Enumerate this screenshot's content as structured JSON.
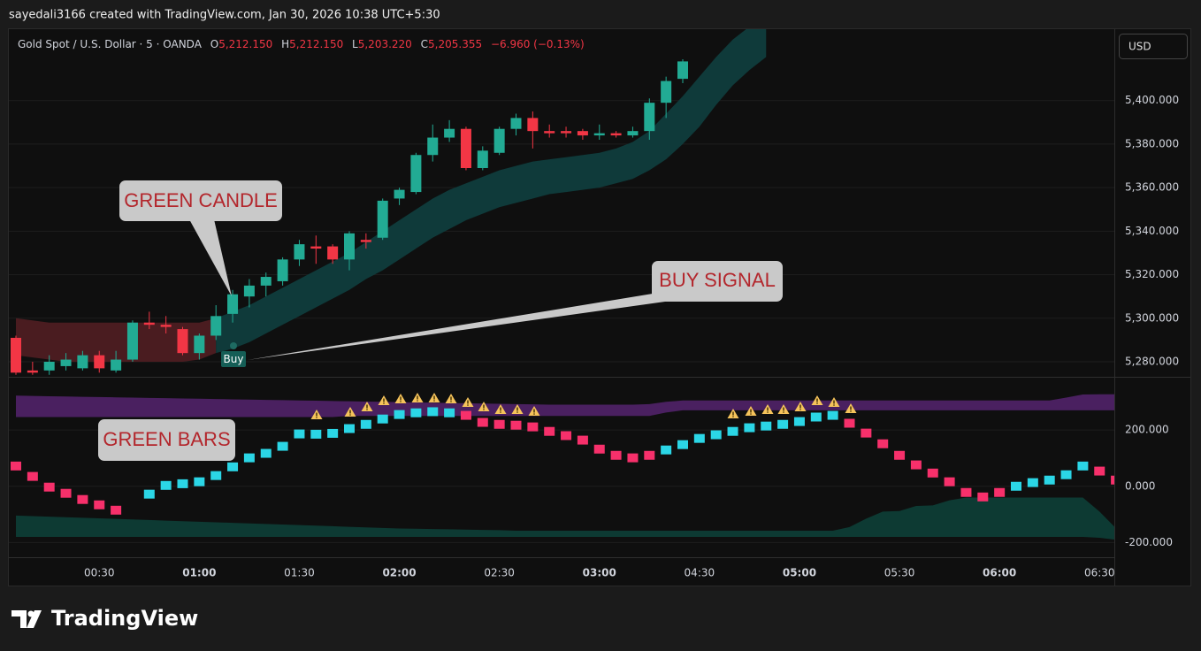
{
  "header": {
    "attribution": "sayedali3166 created with TradingView.com, Jan 30, 2026 10:38 UTC+5:30",
    "symbol": "Gold Spot / U.S. Dollar · 5 · OANDA",
    "ohlc": [
      {
        "key": "O",
        "value": "5,212.150"
      },
      {
        "key": "H",
        "value": "5,212.150"
      },
      {
        "key": "L",
        "value": "5,203.220"
      },
      {
        "key": "C",
        "value": "5,205.355"
      }
    ],
    "change": "−6.960 (−0.13%)",
    "currency": "USD",
    "brand": "TradingView"
  },
  "chart_data": [
    {
      "type": "candlestick",
      "annotations": [
        "GREEN CANDLE",
        "BUY SIGNAL"
      ],
      "signal": {
        "label": "Buy"
      },
      "up_color": "#22ab94",
      "down_color": "#f23645",
      "grid": true,
      "ylim": [
        5273.5,
        5432.8
      ],
      "yticks": [
        {
          "value": 5280,
          "label": "5,280.000"
        },
        {
          "value": 5300,
          "label": "5,300.000"
        },
        {
          "value": 5320,
          "label": "5,320.000"
        },
        {
          "value": 5340,
          "label": "5,340.000"
        },
        {
          "value": 5360,
          "label": "5,360.000"
        },
        {
          "value": 5380,
          "label": "5,380.000"
        },
        {
          "value": 5400,
          "label": "5,400.000"
        }
      ],
      "open": [
        5291,
        5276,
        5276,
        5278,
        5277,
        5283,
        5276,
        5281,
        5298,
        5297,
        5295,
        5284,
        5292,
        5302,
        5310,
        5315,
        5317,
        5327,
        5333,
        5333,
        5327,
        5336,
        5337,
        5355,
        5358,
        5375,
        5383,
        5387,
        5369,
        5376,
        5387,
        5392,
        5386,
        5386,
        5386,
        5384,
        5385,
        5384,
        5386,
        5399,
        5410
      ],
      "high": [
        5292,
        5280,
        5283,
        5284,
        5285,
        5285,
        5285,
        5299,
        5303,
        5301,
        5296,
        5293,
        5306,
        5313,
        5318,
        5321,
        5328,
        5336,
        5338,
        5334,
        5340,
        5339,
        5355,
        5360,
        5376,
        5389,
        5391,
        5388,
        5379,
        5388,
        5394,
        5395,
        5389,
        5388,
        5387,
        5389,
        5386,
        5388,
        5401,
        5411,
        5419
      ],
      "low": [
        5274,
        5274,
        5274,
        5276,
        5276,
        5275,
        5275,
        5280,
        5295,
        5293,
        5283,
        5281,
        5290,
        5298,
        5305,
        5310,
        5315,
        5324,
        5325,
        5325,
        5322,
        5332,
        5336,
        5352,
        5357,
        5372,
        5381,
        5368,
        5368,
        5375,
        5384,
        5378,
        5383,
        5383,
        5382,
        5382,
        5383,
        5383,
        5382,
        5392,
        5408
      ],
      "close": [
        5275,
        5275,
        5280,
        5281,
        5283,
        5277,
        5281,
        5298,
        5297,
        5296,
        5284,
        5292,
        5301,
        5311,
        5315,
        5319,
        5327,
        5334,
        5332,
        5327,
        5339,
        5335,
        5354,
        5359,
        5375,
        5383,
        5387,
        5369,
        5377,
        5387,
        5392,
        5386,
        5385,
        5385,
        5384,
        5385,
        5384,
        5386,
        5399,
        5409,
        5418
      ],
      "bands": [
        {
          "color": "#4a1c20",
          "upper": [
            5300,
            5299,
            5298,
            5298,
            5298,
            5298,
            5298,
            5298,
            5298,
            5298,
            5298,
            5298,
            5300,
            null,
            null,
            null,
            null,
            null,
            null,
            null,
            null,
            null,
            null,
            null,
            null,
            null,
            null,
            null,
            null,
            null,
            null,
            null,
            null,
            null,
            null,
            null,
            null,
            null,
            null,
            null,
            null,
            null,
            null,
            null,
            null,
            null
          ],
          "lower": [
            5283,
            5282,
            5281,
            5280,
            5280,
            5280,
            5280,
            5280,
            5280,
            5280,
            5280,
            5281,
            5284,
            null,
            null,
            null,
            null,
            null,
            null,
            null,
            null,
            null,
            null,
            null,
            null,
            null,
            null,
            null,
            null,
            null,
            null,
            null,
            null,
            null,
            null,
            null,
            null,
            null,
            null,
            null,
            null,
            null,
            null,
            null,
            null,
            null
          ]
        },
        {
          "color": "#0f3a3a",
          "upper": [
            null,
            null,
            null,
            null,
            null,
            null,
            null,
            null,
            null,
            null,
            null,
            null,
            5300,
            5303,
            5306,
            5310,
            5314,
            5318,
            5322,
            5326,
            5330,
            5335,
            5340,
            5345,
            5350,
            5355,
            5359,
            5362,
            5365,
            5368,
            5370,
            5372,
            5373,
            5374,
            5375,
            5376,
            5378,
            5381,
            5386,
            5394,
            5402,
            5411,
            5420,
            5428,
            5434,
            5440
          ],
          "lower": [
            null,
            null,
            null,
            null,
            null,
            null,
            null,
            null,
            null,
            null,
            null,
            null,
            5284,
            5286,
            5289,
            5293,
            5297,
            5301,
            5305,
            5309,
            5313,
            5318,
            5322,
            5327,
            5332,
            5337,
            5341,
            5345,
            5348,
            5351,
            5353,
            5355,
            5357,
            5358,
            5359,
            5360,
            5362,
            5364,
            5368,
            5373,
            5380,
            5388,
            5398,
            5407,
            5414,
            5420
          ]
        }
      ]
    },
    {
      "type": "indicator",
      "annotations": [
        "GREEN BARS"
      ],
      "grid": true,
      "ylim": [
        -352.8,
        382.7
      ],
      "yticks": [
        {
          "value": -200,
          "label": "-200.000"
        },
        {
          "value": 0,
          "label": "0.000"
        },
        {
          "value": 200,
          "label": "200.000"
        }
      ],
      "categories": [
        null,
        null,
        null,
        null,
        null,
        "00:30",
        null,
        null,
        null,
        null,
        null,
        "01:00",
        null,
        null,
        null,
        null,
        null,
        "01:30",
        null,
        null,
        null,
        null,
        null,
        "02:00",
        null,
        null,
        null,
        null,
        null,
        "02:30",
        null,
        null,
        null,
        null,
        null,
        "03:00",
        null,
        null,
        null,
        null,
        null,
        "04:30",
        null,
        null,
        null,
        null,
        null,
        "05:00",
        null,
        null,
        null,
        null,
        null,
        "05:30",
        null,
        null,
        null,
        null,
        null,
        "06:00",
        null,
        null,
        null,
        null,
        null,
        "06:30",
        null
      ],
      "series": [
        {
          "color": "#2bd6e6",
          "values": [
            null,
            null,
            null,
            null,
            null,
            null,
            null,
            null,
            -28,
            3,
            9,
            16,
            38,
            69,
            101,
            117,
            142,
            186,
            185,
            188,
            205,
            220,
            239,
            255,
            261,
            265,
            261,
            null,
            null,
            null,
            null,
            null,
            null,
            null,
            null,
            null,
            null,
            null,
            null,
            129,
            148,
            170,
            183,
            195,
            208,
            214,
            220,
            230,
            246,
            252,
            null,
            null,
            null,
            null,
            null,
            null,
            null,
            null,
            null,
            null,
            0,
            13,
            22,
            41,
            72,
            null,
            null
          ]
        },
        {
          "color": "#f7306b",
          "values": [
            72,
            35,
            -3,
            -25,
            -47,
            -66,
            -85,
            null,
            null,
            null,
            null,
            null,
            null,
            null,
            null,
            null,
            null,
            null,
            null,
            null,
            null,
            null,
            null,
            null,
            null,
            null,
            null,
            252,
            227,
            220,
            217,
            211,
            195,
            180,
            164,
            132,
            110,
            101,
            110,
            null,
            null,
            null,
            null,
            null,
            null,
            null,
            null,
            null,
            null,
            null,
            224,
            189,
            151,
            110,
            76,
            47,
            16,
            -22,
            -38,
            -22,
            null,
            null,
            null,
            null,
            null,
            54,
            22
          ]
        }
      ],
      "bands": [
        {
          "color": "#4a2060",
          "upper": [
            322,
            321,
            320,
            319,
            318,
            317,
            316,
            315,
            314,
            313,
            312,
            311,
            310,
            309,
            308,
            307,
            306,
            305,
            304,
            303,
            302,
            301,
            300,
            299,
            298,
            297,
            296,
            295,
            294,
            293,
            292,
            291,
            290,
            290,
            290,
            290,
            290,
            290,
            292,
            300,
            305,
            305,
            305,
            305,
            305,
            305,
            305,
            305,
            305,
            305,
            305,
            305,
            305,
            305,
            305,
            305,
            305,
            305,
            305,
            305,
            305,
            305,
            305,
            315,
            326,
            327,
            327
          ],
          "lower": [
            246,
            246,
            246,
            246,
            246,
            246,
            246,
            246,
            246,
            246,
            246,
            246,
            246,
            246,
            246,
            246,
            246,
            246,
            246,
            246,
            250,
            250,
            250,
            250,
            250,
            250,
            250,
            250,
            250,
            250,
            250,
            250,
            250,
            250,
            250,
            250,
            250,
            250,
            250,
            262,
            270,
            270,
            270,
            270,
            270,
            270,
            270,
            270,
            270,
            270,
            270,
            270,
            270,
            270,
            270,
            270,
            270,
            270,
            270,
            270,
            270,
            270,
            270,
            270,
            270,
            270,
            270
          ]
        },
        {
          "color": "#0d3a33",
          "upper": [
            -104,
            -106,
            -108,
            -110,
            -112,
            -114,
            -116,
            -118,
            -120,
            -122,
            -124,
            -126,
            -128,
            -130,
            -132,
            -134,
            -136,
            -138,
            -140,
            -142,
            -144,
            -146,
            -148,
            -150,
            -151,
            -152,
            -153,
            -154,
            -155,
            -156,
            -158,
            -158,
            -158,
            -158,
            -158,
            -158,
            -158,
            -158,
            -158,
            -158,
            -158,
            -158,
            -158,
            -158,
            -158,
            -158,
            -158,
            -158,
            -158,
            -158,
            -145,
            -115,
            -90,
            -88,
            -70,
            -68,
            -50,
            -40,
            -40,
            -40,
            -40,
            -40,
            -40,
            -40,
            -40,
            -90,
            -150
          ],
          "lower": [
            -180,
            -180,
            -180,
            -180,
            -180,
            -180,
            -180,
            -180,
            -180,
            -180,
            -180,
            -180,
            -180,
            -180,
            -180,
            -180,
            -180,
            -180,
            -180,
            -180,
            -180,
            -180,
            -180,
            -180,
            -180,
            -180,
            -180,
            -180,
            -180,
            -180,
            -180,
            -180,
            -180,
            -180,
            -180,
            -180,
            -180,
            -180,
            -180,
            -180,
            -180,
            -180,
            -180,
            -180,
            -180,
            -180,
            -180,
            -180,
            -180,
            -180,
            -180,
            -180,
            -180,
            -180,
            -180,
            -180,
            -180,
            -180,
            -180,
            -180,
            -180,
            -180,
            -180,
            -180,
            -180,
            -183,
            -190
          ]
        }
      ]
    }
  ]
}
